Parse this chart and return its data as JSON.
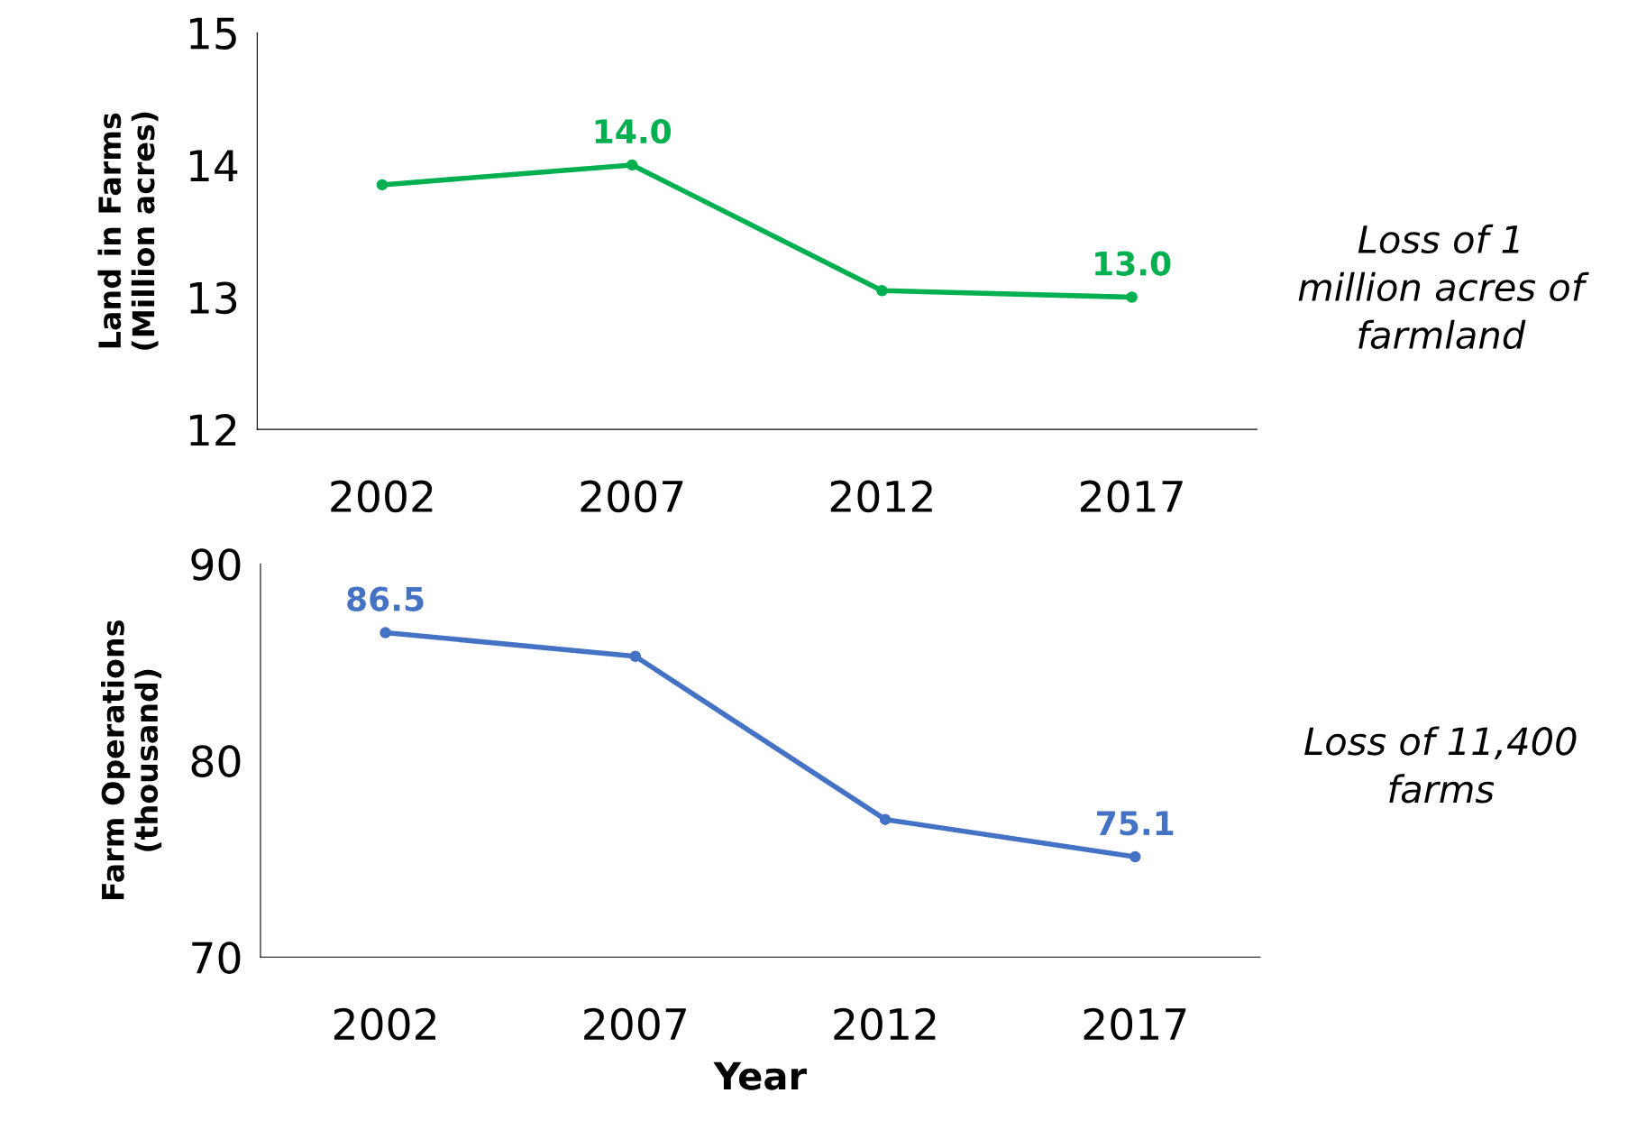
{
  "chart_data": [
    {
      "type": "line",
      "categories": [
        "2002",
        "2007",
        "2012",
        "2017"
      ],
      "ylabel": "Land in Farms\n(Million acres)",
      "ylim": [
        12,
        15
      ],
      "yticks": [
        12,
        13,
        14,
        15
      ],
      "marker": "circle",
      "line_style": "solid",
      "series": [
        {
          "color": "#00b050",
          "values": [
            13.85,
            14.0,
            13.05,
            13.0
          ],
          "value_labels": [
            null,
            "14.0",
            null,
            "13.0"
          ]
        }
      ],
      "annotations": [
        "Loss of 1\nmillion acres of\nfarmland"
      ]
    },
    {
      "type": "line",
      "categories": [
        "2002",
        "2007",
        "2012",
        "2017"
      ],
      "ylabel": "Farm Operations\n(thousand)",
      "xlabel": "Year",
      "ylim": [
        70,
        90
      ],
      "yticks": [
        70,
        80,
        90
      ],
      "marker": "circle",
      "line_style": "solid",
      "series": [
        {
          "color": "#4472c4",
          "values": [
            86.5,
            85.3,
            77.0,
            75.1
          ],
          "value_labels": [
            "86.5",
            null,
            null,
            "75.1"
          ]
        }
      ],
      "annotations": [
        "Loss of 11,400\nfarms"
      ]
    }
  ]
}
